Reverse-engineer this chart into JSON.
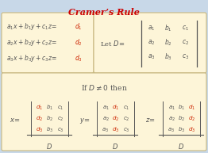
{
  "title": "Cramer’s Rule",
  "title_color": "#cc0000",
  "background_color": "#c8d8e8",
  "box_color": "#fdf5d8",
  "box_edge_color": "#c8b880",
  "text_color": "#555555",
  "red_color": "#cc2200"
}
